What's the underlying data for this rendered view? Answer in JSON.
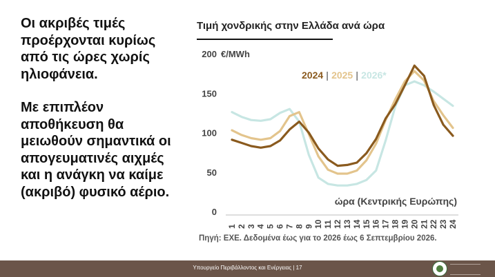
{
  "left_text": {
    "paragraph_1": "Οι ακριβές τιμές προέρχονται κυρίως από τις ώρες χωρίς ηλιοφάνεια.",
    "paragraph_2": "Με επιπλέον αποθήκευση θα μειωθούν σημαντικά οι απογευματινές αιχμές και η ανάγκη να καίμε (ακριβό) φυσικό αέριο."
  },
  "source_note": "Πηγή: ΕΧΕ. Δεδομένα έως για το 2026 έως 6 Σεπτεμβρίου 2026.",
  "footer": {
    "text": "Υπουργείο Περιβάλλοντος και Ενέργειας | 17"
  },
  "chart_data": {
    "type": "line",
    "title": "Τιμή χονδρικής στην Ελλάδα ανά ώρα",
    "ylabel": "€/MWh",
    "xlabel": "ώρα (Κεντρικής Ευρώπης)",
    "x": [
      1,
      2,
      3,
      4,
      5,
      6,
      7,
      8,
      9,
      10,
      11,
      12,
      13,
      14,
      15,
      16,
      17,
      18,
      19,
      20,
      21,
      22,
      23,
      24
    ],
    "ylim": [
      0,
      200
    ],
    "yticks": [
      0,
      50,
      100,
      150,
      200
    ],
    "grid": false,
    "legend_position": "top-right",
    "legend_separator": "|",
    "series": [
      {
        "name": "2024",
        "color": "#8a5a1e",
        "values": [
          91,
          87,
          83,
          81,
          83,
          90,
          104,
          114,
          100,
          80,
          66,
          58,
          59,
          62,
          74,
          92,
          118,
          136,
          160,
          185,
          172,
          135,
          110,
          96
        ]
      },
      {
        "name": "2025",
        "color": "#e3c48c",
        "values": [
          103,
          97,
          93,
          91,
          93,
          102,
          121,
          126,
          98,
          70,
          53,
          48,
          48,
          52,
          65,
          86,
          116,
          142,
          165,
          178,
          166,
          140,
          122,
          106
        ]
      },
      {
        "name": "2026*",
        "color": "#c7e6e3",
        "values": [
          126,
          120,
          116,
          115,
          117,
          125,
          130,
          114,
          72,
          43,
          35,
          33,
          33,
          35,
          40,
          52,
          90,
          133,
          160,
          165,
          160,
          152,
          143,
          134
        ]
      }
    ]
  }
}
